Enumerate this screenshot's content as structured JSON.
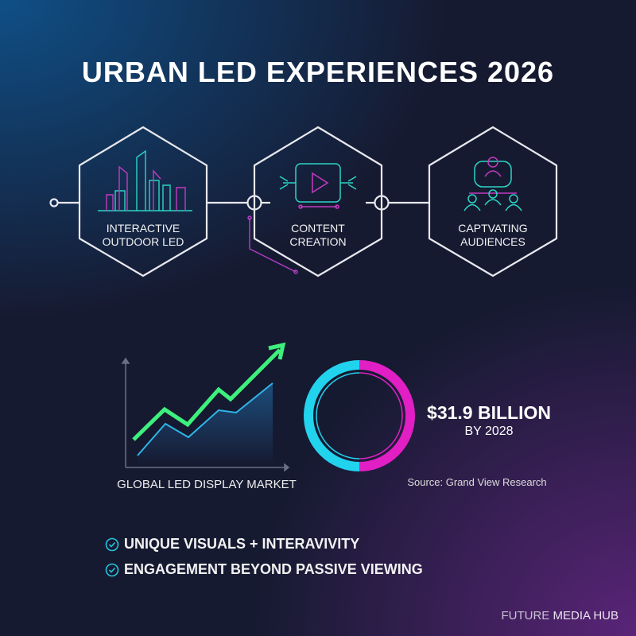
{
  "title": "URBAN LED EXPERIENCES 2026",
  "steps": [
    {
      "line1": "INTERACTIVE",
      "line2": "OUTDOOR LED",
      "icon": "city-skyline-icon"
    },
    {
      "line1": "CONTENT",
      "line2": "CREATION",
      "icon": "video-play-icon"
    },
    {
      "line1": "CAPTVATING",
      "line2": "AUDIENCES",
      "icon": "audience-network-icon"
    }
  ],
  "chart": {
    "label": "GLOBAL LED DISPLAY MARKET"
  },
  "stat": {
    "value": "$31.9 BILLION",
    "sub": "BY 2028",
    "source": "Source: Grand View Research"
  },
  "bullets": [
    "UNIQUE VISUALS + INTERAVIVITY",
    "ENGAGEMENT BEYOND PASSIVE VIEWING"
  ],
  "brand": {
    "part1": "FUTURE ",
    "part2": "MEDIA HUB"
  },
  "colors": {
    "cyan": "#22d3ee",
    "magenta": "#e11fc4",
    "green": "#3ef07c",
    "line": "#e8e8ee"
  }
}
